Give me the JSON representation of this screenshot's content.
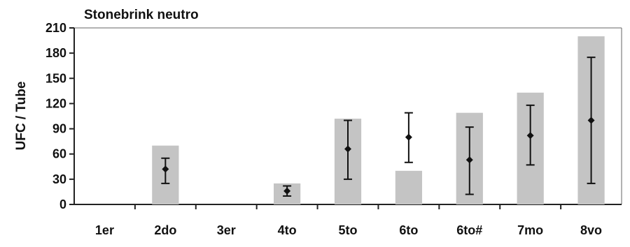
{
  "chart_data": {
    "type": "bar",
    "title": "Stonebrink neutro",
    "xlabel": "",
    "ylabel": "UFC / Tube",
    "ylim": [
      0,
      210
    ],
    "yticks": [
      0,
      30,
      60,
      90,
      120,
      150,
      180,
      210
    ],
    "grid": false,
    "legend": "none",
    "categories": [
      "1er",
      "2do",
      "3er",
      "4to",
      "5to",
      "6to",
      "6to#",
      "7mo",
      "8vo"
    ],
    "series": [
      {
        "kind": "bar",
        "values": [
          0,
          70,
          0,
          25,
          102,
          40,
          109,
          133,
          200
        ]
      },
      {
        "kind": "points-with-error-bars",
        "values": [
          null,
          42,
          null,
          16,
          66,
          80,
          53,
          82,
          100
        ],
        "error_low": [
          null,
          25,
          null,
          10,
          30,
          50,
          12,
          47,
          25
        ],
        "error_high": [
          null,
          55,
          null,
          22,
          100,
          109,
          92,
          118,
          175
        ]
      }
    ],
    "colors": {
      "bar": "#c4c4c4",
      "point": "#111111",
      "axis": "#222222"
    }
  }
}
